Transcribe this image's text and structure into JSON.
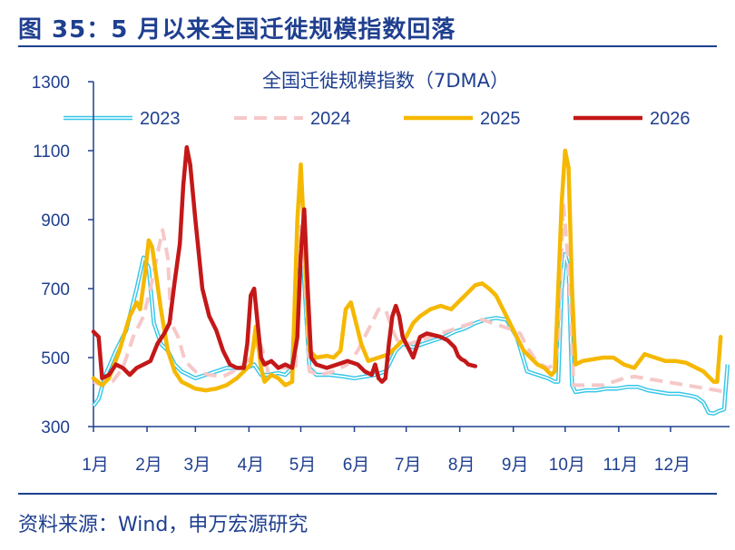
{
  "figure_title": "图 35：5 月以来全国迁徙规模指数回落",
  "source": "资料来源：Wind，申万宏源研究",
  "colors": {
    "brand": "#1f3f8f",
    "s2023": "#36c6e8",
    "s2024": "#f6c8c8",
    "s2025": "#f5b800",
    "s2026": "#c41818"
  },
  "chart_data": {
    "type": "line",
    "title": "全国迁徙规模指数（7DMA）",
    "ylim": [
      300,
      1300
    ],
    "yticks": [
      "300",
      "500",
      "700",
      "900",
      "1100",
      "1300"
    ],
    "xlim": [
      1,
      366
    ],
    "xticks": [
      {
        "label": "1月",
        "day": 1
      },
      {
        "label": "2月",
        "day": 32
      },
      {
        "label": "3月",
        "day": 60
      },
      {
        "label": "4月",
        "day": 91
      },
      {
        "label": "5月",
        "day": 121
      },
      {
        "label": "6月",
        "day": 152
      },
      {
        "label": "7月",
        "day": 182
      },
      {
        "label": "8月",
        "day": 213
      },
      {
        "label": "9月",
        "day": 244
      },
      {
        "label": "10月",
        "day": 274
      },
      {
        "label": "11月",
        "day": 305
      },
      {
        "label": "12月",
        "day": 335
      }
    ],
    "legend_position": "top",
    "series": [
      {
        "name": "2023",
        "color": "#36c6e8",
        "style": "double",
        "points": [
          [
            1,
            360
          ],
          [
            4,
            380
          ],
          [
            8,
            450
          ],
          [
            14,
            520
          ],
          [
            20,
            580
          ],
          [
            26,
            700
          ],
          [
            30,
            790
          ],
          [
            33,
            760
          ],
          [
            36,
            600
          ],
          [
            40,
            540
          ],
          [
            44,
            520
          ],
          [
            48,
            480
          ],
          [
            52,
            460
          ],
          [
            56,
            450
          ],
          [
            60,
            440
          ],
          [
            66,
            450
          ],
          [
            72,
            460
          ],
          [
            78,
            470
          ],
          [
            84,
            470
          ],
          [
            90,
            470
          ],
          [
            94,
            480
          ],
          [
            98,
            450
          ],
          [
            102,
            450
          ],
          [
            108,
            455
          ],
          [
            112,
            450
          ],
          [
            116,
            470
          ],
          [
            119,
            780
          ],
          [
            121,
            850
          ],
          [
            123,
            720
          ],
          [
            126,
            470
          ],
          [
            130,
            450
          ],
          [
            138,
            450
          ],
          [
            146,
            445
          ],
          [
            152,
            440
          ],
          [
            158,
            445
          ],
          [
            164,
            450
          ],
          [
            170,
            460
          ],
          [
            176,
            520
          ],
          [
            180,
            540
          ],
          [
            186,
            530
          ],
          [
            192,
            540
          ],
          [
            198,
            550
          ],
          [
            204,
            560
          ],
          [
            210,
            575
          ],
          [
            216,
            585
          ],
          [
            222,
            600
          ],
          [
            228,
            610
          ],
          [
            234,
            615
          ],
          [
            240,
            610
          ],
          [
            246,
            560
          ],
          [
            252,
            460
          ],
          [
            258,
            450
          ],
          [
            264,
            440
          ],
          [
            268,
            430
          ],
          [
            270,
            430
          ],
          [
            272,
            700
          ],
          [
            274,
            800
          ],
          [
            276,
            760
          ],
          [
            278,
            420
          ],
          [
            280,
            400
          ],
          [
            286,
            405
          ],
          [
            292,
            405
          ],
          [
            298,
            410
          ],
          [
            304,
            410
          ],
          [
            310,
            415
          ],
          [
            316,
            415
          ],
          [
            322,
            405
          ],
          [
            328,
            400
          ],
          [
            334,
            395
          ],
          [
            340,
            395
          ],
          [
            346,
            390
          ],
          [
            350,
            385
          ],
          [
            354,
            370
          ],
          [
            357,
            340
          ],
          [
            360,
            338
          ],
          [
            363,
            345
          ],
          [
            366,
            350
          ],
          [
            368,
            480
          ]
        ]
      },
      {
        "name": "2024",
        "color": "#f6c8c8",
        "style": "dashed",
        "points": [
          [
            1,
            430
          ],
          [
            6,
            420
          ],
          [
            12,
            430
          ],
          [
            18,
            470
          ],
          [
            24,
            560
          ],
          [
            30,
            620
          ],
          [
            34,
            700
          ],
          [
            38,
            800
          ],
          [
            41,
            870
          ],
          [
            44,
            790
          ],
          [
            46,
            600
          ],
          [
            50,
            560
          ],
          [
            54,
            490
          ],
          [
            60,
            460
          ],
          [
            68,
            450
          ],
          [
            76,
            445
          ],
          [
            82,
            460
          ],
          [
            88,
            480
          ],
          [
            92,
            500
          ],
          [
            96,
            560
          ],
          [
            99,
            520
          ],
          [
            102,
            460
          ],
          [
            108,
            470
          ],
          [
            114,
            470
          ],
          [
            118,
            470
          ],
          [
            121,
            880
          ],
          [
            123,
            770
          ],
          [
            126,
            460
          ],
          [
            132,
            450
          ],
          [
            140,
            460
          ],
          [
            148,
            480
          ],
          [
            154,
            520
          ],
          [
            158,
            560
          ],
          [
            162,
            600
          ],
          [
            166,
            640
          ],
          [
            170,
            640
          ],
          [
            174,
            580
          ],
          [
            178,
            540
          ],
          [
            184,
            540
          ],
          [
            190,
            550
          ],
          [
            196,
            560
          ],
          [
            202,
            570
          ],
          [
            208,
            580
          ],
          [
            214,
            590
          ],
          [
            220,
            600
          ],
          [
            226,
            610
          ],
          [
            232,
            600
          ],
          [
            238,
            590
          ],
          [
            244,
            580
          ],
          [
            248,
            570
          ],
          [
            252,
            530
          ],
          [
            256,
            500
          ],
          [
            260,
            480
          ],
          [
            264,
            470
          ],
          [
            268,
            480
          ],
          [
            270,
            550
          ],
          [
            273,
            950
          ],
          [
            276,
            760
          ],
          [
            279,
            420
          ],
          [
            284,
            420
          ],
          [
            290,
            420
          ],
          [
            296,
            420
          ],
          [
            302,
            430
          ],
          [
            308,
            440
          ],
          [
            314,
            445
          ],
          [
            320,
            440
          ],
          [
            326,
            435
          ],
          [
            332,
            430
          ],
          [
            338,
            425
          ],
          [
            344,
            420
          ],
          [
            350,
            415
          ],
          [
            356,
            410
          ],
          [
            362,
            405
          ],
          [
            366,
            400
          ]
        ]
      },
      {
        "name": "2025",
        "color": "#f5b800",
        "style": "solid",
        "points": [
          [
            1,
            440
          ],
          [
            6,
            420
          ],
          [
            10,
            440
          ],
          [
            16,
            520
          ],
          [
            22,
            620
          ],
          [
            26,
            660
          ],
          [
            28,
            640
          ],
          [
            31,
            750
          ],
          [
            33,
            840
          ],
          [
            35,
            820
          ],
          [
            37,
            750
          ],
          [
            40,
            640
          ],
          [
            44,
            520
          ],
          [
            48,
            460
          ],
          [
            52,
            430
          ],
          [
            56,
            420
          ],
          [
            60,
            410
          ],
          [
            66,
            405
          ],
          [
            72,
            410
          ],
          [
            78,
            420
          ],
          [
            84,
            440
          ],
          [
            88,
            460
          ],
          [
            92,
            480
          ],
          [
            95,
            590
          ],
          [
            98,
            470
          ],
          [
            100,
            430
          ],
          [
            104,
            450
          ],
          [
            108,
            440
          ],
          [
            112,
            420
          ],
          [
            116,
            430
          ],
          [
            119,
            900
          ],
          [
            121,
            1060
          ],
          [
            123,
            850
          ],
          [
            126,
            520
          ],
          [
            130,
            500
          ],
          [
            136,
            505
          ],
          [
            140,
            500
          ],
          [
            144,
            520
          ],
          [
            147,
            640
          ],
          [
            150,
            660
          ],
          [
            153,
            600
          ],
          [
            156,
            540
          ],
          [
            160,
            490
          ],
          [
            166,
            500
          ],
          [
            172,
            510
          ],
          [
            178,
            540
          ],
          [
            182,
            560
          ],
          [
            186,
            600
          ],
          [
            190,
            620
          ],
          [
            196,
            640
          ],
          [
            202,
            650
          ],
          [
            208,
            640
          ],
          [
            214,
            670
          ],
          [
            218,
            690
          ],
          [
            222,
            710
          ],
          [
            226,
            715
          ],
          [
            230,
            700
          ],
          [
            234,
            680
          ],
          [
            238,
            640
          ],
          [
            242,
            600
          ],
          [
            246,
            560
          ],
          [
            250,
            520
          ],
          [
            254,
            500
          ],
          [
            258,
            480
          ],
          [
            262,
            470
          ],
          [
            266,
            450
          ],
          [
            268,
            460
          ],
          [
            270,
            700
          ],
          [
            272,
            950
          ],
          [
            274,
            1100
          ],
          [
            276,
            1050
          ],
          [
            278,
            700
          ],
          [
            280,
            480
          ],
          [
            284,
            490
          ],
          [
            290,
            495
          ],
          [
            296,
            500
          ],
          [
            302,
            500
          ],
          [
            308,
            480
          ],
          [
            314,
            470
          ],
          [
            320,
            510
          ],
          [
            326,
            500
          ],
          [
            332,
            490
          ],
          [
            338,
            490
          ],
          [
            344,
            485
          ],
          [
            350,
            470
          ],
          [
            354,
            460
          ],
          [
            358,
            440
          ],
          [
            360,
            430
          ],
          [
            362,
            430
          ],
          [
            364,
            560
          ]
        ]
      },
      {
        "name": "2026",
        "color": "#c41818",
        "style": "solid",
        "points": [
          [
            1,
            575
          ],
          [
            4,
            560
          ],
          [
            6,
            440
          ],
          [
            10,
            450
          ],
          [
            14,
            480
          ],
          [
            18,
            470
          ],
          [
            22,
            450
          ],
          [
            26,
            470
          ],
          [
            30,
            480
          ],
          [
            34,
            490
          ],
          [
            38,
            540
          ],
          [
            42,
            570
          ],
          [
            45,
            600
          ],
          [
            48,
            720
          ],
          [
            51,
            830
          ],
          [
            53,
            1000
          ],
          [
            55,
            1110
          ],
          [
            57,
            1060
          ],
          [
            60,
            900
          ],
          [
            64,
            700
          ],
          [
            68,
            620
          ],
          [
            72,
            580
          ],
          [
            76,
            520
          ],
          [
            80,
            480
          ],
          [
            84,
            470
          ],
          [
            88,
            470
          ],
          [
            90,
            540
          ],
          [
            92,
            680
          ],
          [
            94,
            700
          ],
          [
            96,
            600
          ],
          [
            98,
            500
          ],
          [
            100,
            480
          ],
          [
            104,
            490
          ],
          [
            108,
            470
          ],
          [
            112,
            480
          ],
          [
            116,
            470
          ],
          [
            119,
            560
          ],
          [
            121,
            800
          ],
          [
            123,
            930
          ],
          [
            125,
            700
          ],
          [
            127,
            500
          ],
          [
            130,
            480
          ],
          [
            136,
            470
          ],
          [
            142,
            480
          ],
          [
            148,
            490
          ],
          [
            154,
            480
          ],
          [
            158,
            460
          ],
          [
            162,
            450
          ],
          [
            164,
            480
          ],
          [
            166,
            440
          ],
          [
            168,
            430
          ],
          [
            170,
            440
          ],
          [
            172,
            540
          ],
          [
            174,
            620
          ],
          [
            176,
            650
          ],
          [
            178,
            620
          ],
          [
            180,
            560
          ],
          [
            182,
            540
          ],
          [
            184,
            520
          ],
          [
            186,
            500
          ],
          [
            188,
            530
          ],
          [
            190,
            560
          ],
          [
            194,
            570
          ],
          [
            198,
            565
          ],
          [
            202,
            560
          ],
          [
            206,
            550
          ],
          [
            210,
            530
          ],
          [
            212,
            505
          ],
          [
            214,
            495
          ],
          [
            216,
            490
          ],
          [
            218,
            480
          ],
          [
            222,
            475
          ]
        ]
      }
    ]
  }
}
